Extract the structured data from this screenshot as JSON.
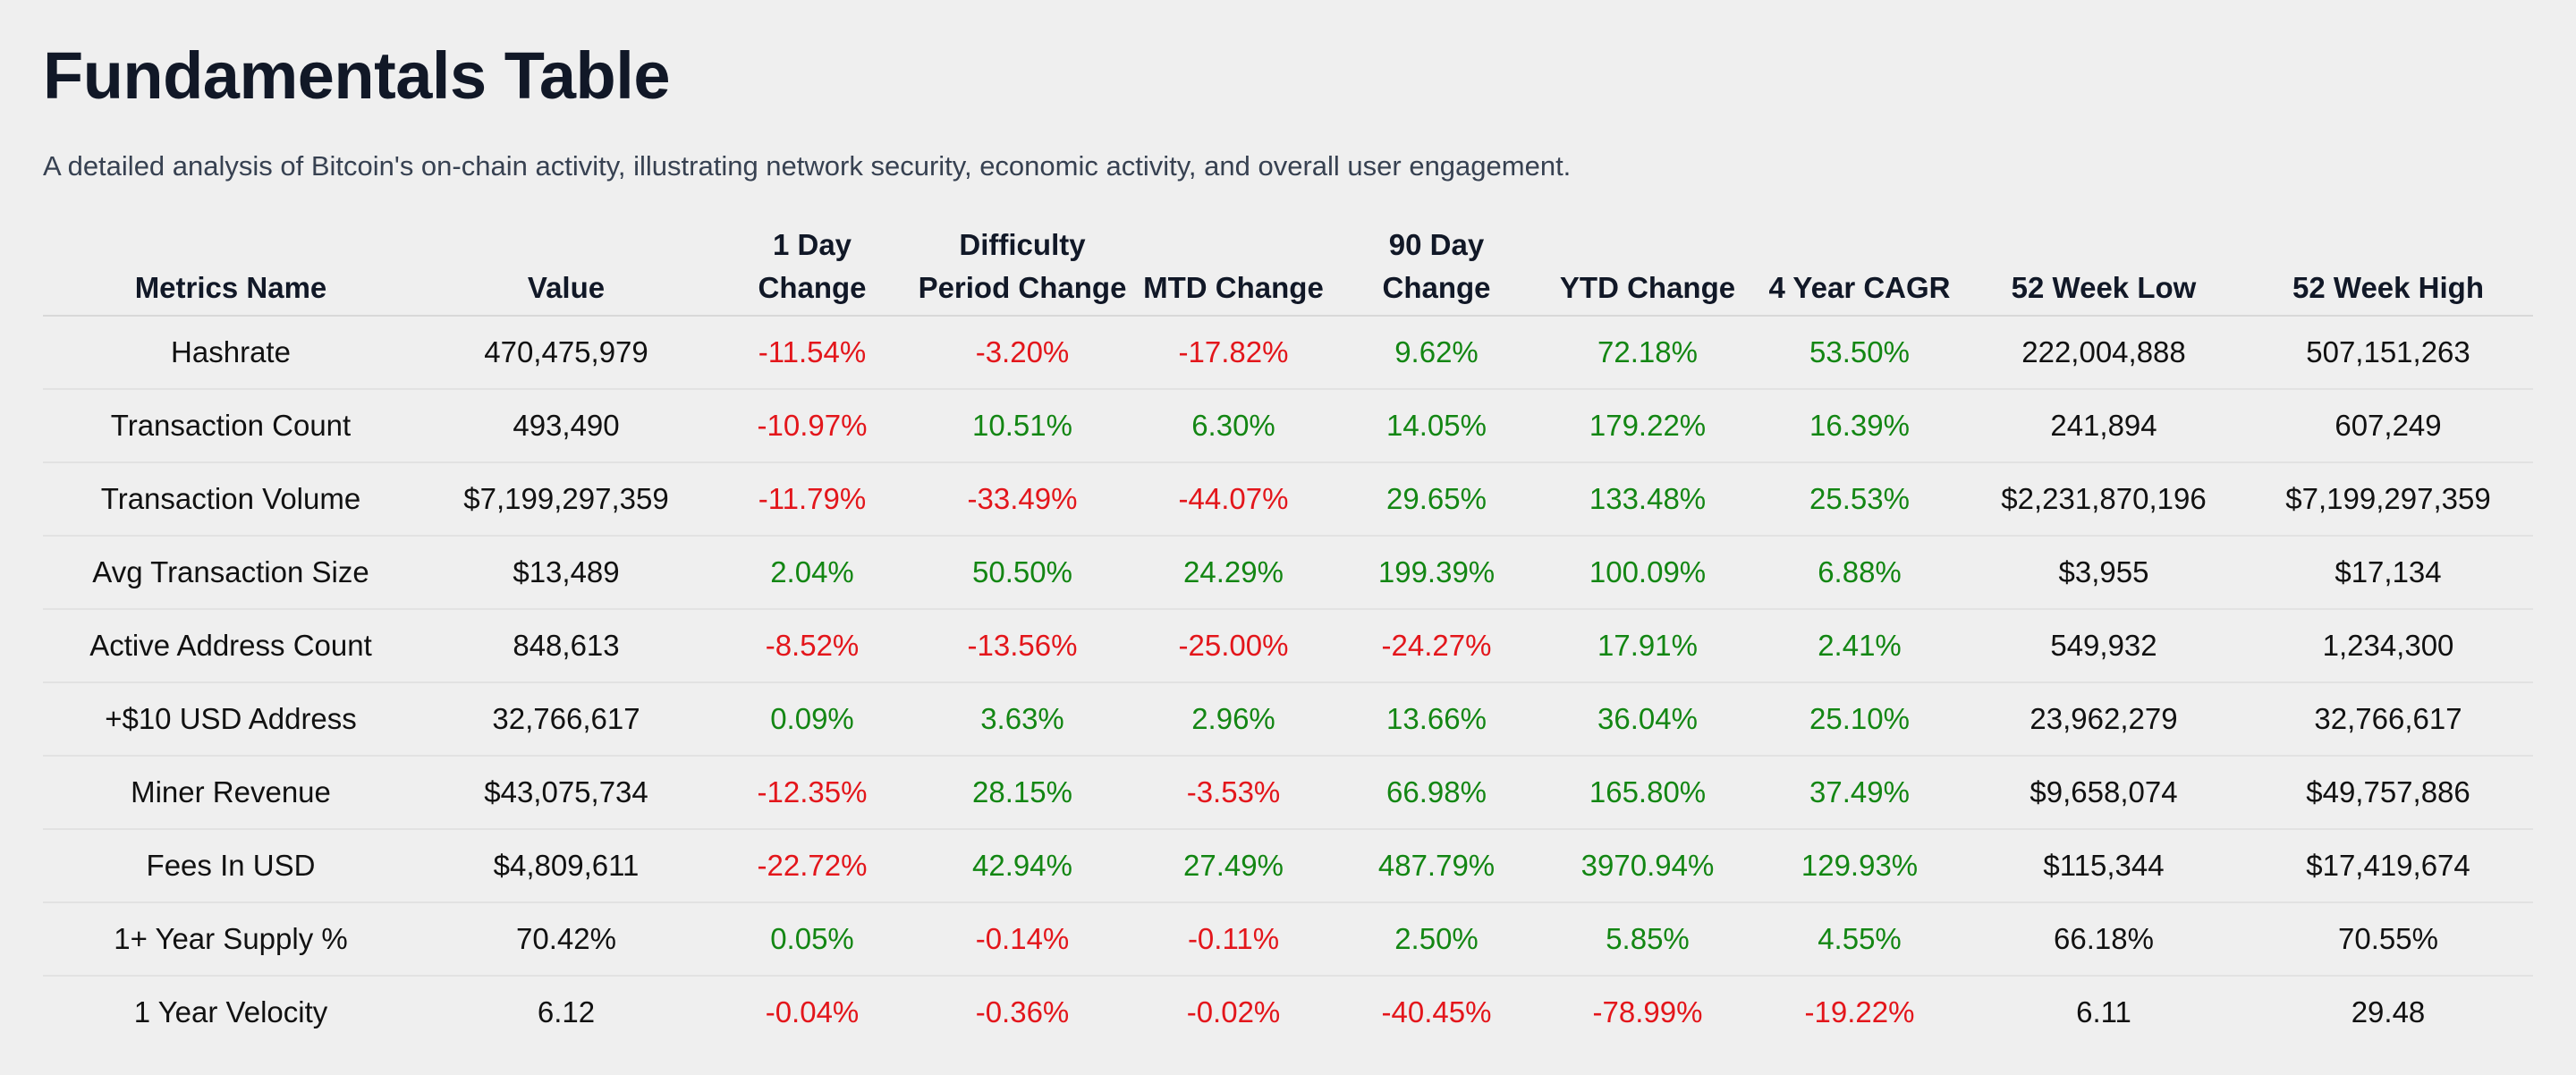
{
  "page": {
    "title": "Fundamentals Table",
    "subtitle": "A detailed analysis of Bitcoin's on-chain activity, illustrating network security, economic activity, and overall user engagement."
  },
  "colors": {
    "negative": "#e3161b",
    "positive": "#138613",
    "title": "#111827",
    "background": "#efefef"
  },
  "table": {
    "headers": [
      "Metrics Name",
      "Value",
      "1 Day Change",
      "Difficulty Period Change",
      "MTD Change",
      "90 Day Change",
      "YTD Change",
      "4 Year CAGR",
      "52 Week Low",
      "52 Week High"
    ],
    "rows": [
      [
        "Hashrate",
        "470,475,979",
        "-11.54%",
        "-3.20%",
        "-17.82%",
        "9.62%",
        "72.18%",
        "53.50%",
        "222,004,888",
        "507,151,263"
      ],
      [
        "Transaction Count",
        "493,490",
        "-10.97%",
        "10.51%",
        "6.30%",
        "14.05%",
        "179.22%",
        "16.39%",
        "241,894",
        "607,249"
      ],
      [
        "Transaction Volume",
        "$7,199,297,359",
        "-11.79%",
        "-33.49%",
        "-44.07%",
        "29.65%",
        "133.48%",
        "25.53%",
        "$2,231,870,196",
        "$7,199,297,359"
      ],
      [
        "Avg Transaction Size",
        "$13,489",
        "2.04%",
        "50.50%",
        "24.29%",
        "199.39%",
        "100.09%",
        "6.88%",
        "$3,955",
        "$17,134"
      ],
      [
        "Active Address Count",
        "848,613",
        "-8.52%",
        "-13.56%",
        "-25.00%",
        "-24.27%",
        "17.91%",
        "2.41%",
        "549,932",
        "1,234,300"
      ],
      [
        "+$10 USD Address",
        "32,766,617",
        "0.09%",
        "3.63%",
        "2.96%",
        "13.66%",
        "36.04%",
        "25.10%",
        "23,962,279",
        "32,766,617"
      ],
      [
        "Miner Revenue",
        "$43,075,734",
        "-12.35%",
        "28.15%",
        "-3.53%",
        "66.98%",
        "165.80%",
        "37.49%",
        "$9,658,074",
        "$49,757,886"
      ],
      [
        "Fees In USD",
        "$4,809,611",
        "-22.72%",
        "42.94%",
        "27.49%",
        "487.79%",
        "3970.94%",
        "129.93%",
        "$115,344",
        "$17,419,674"
      ],
      [
        "1+ Year Supply %",
        "70.42%",
        "0.05%",
        "-0.14%",
        "-0.11%",
        "2.50%",
        "5.85%",
        "4.55%",
        "66.18%",
        "70.55%"
      ],
      [
        "1 Year Velocity",
        "6.12",
        "-0.04%",
        "-0.36%",
        "-0.02%",
        "-40.45%",
        "-78.99%",
        "-19.22%",
        "6.11",
        "29.48"
      ]
    ]
  }
}
